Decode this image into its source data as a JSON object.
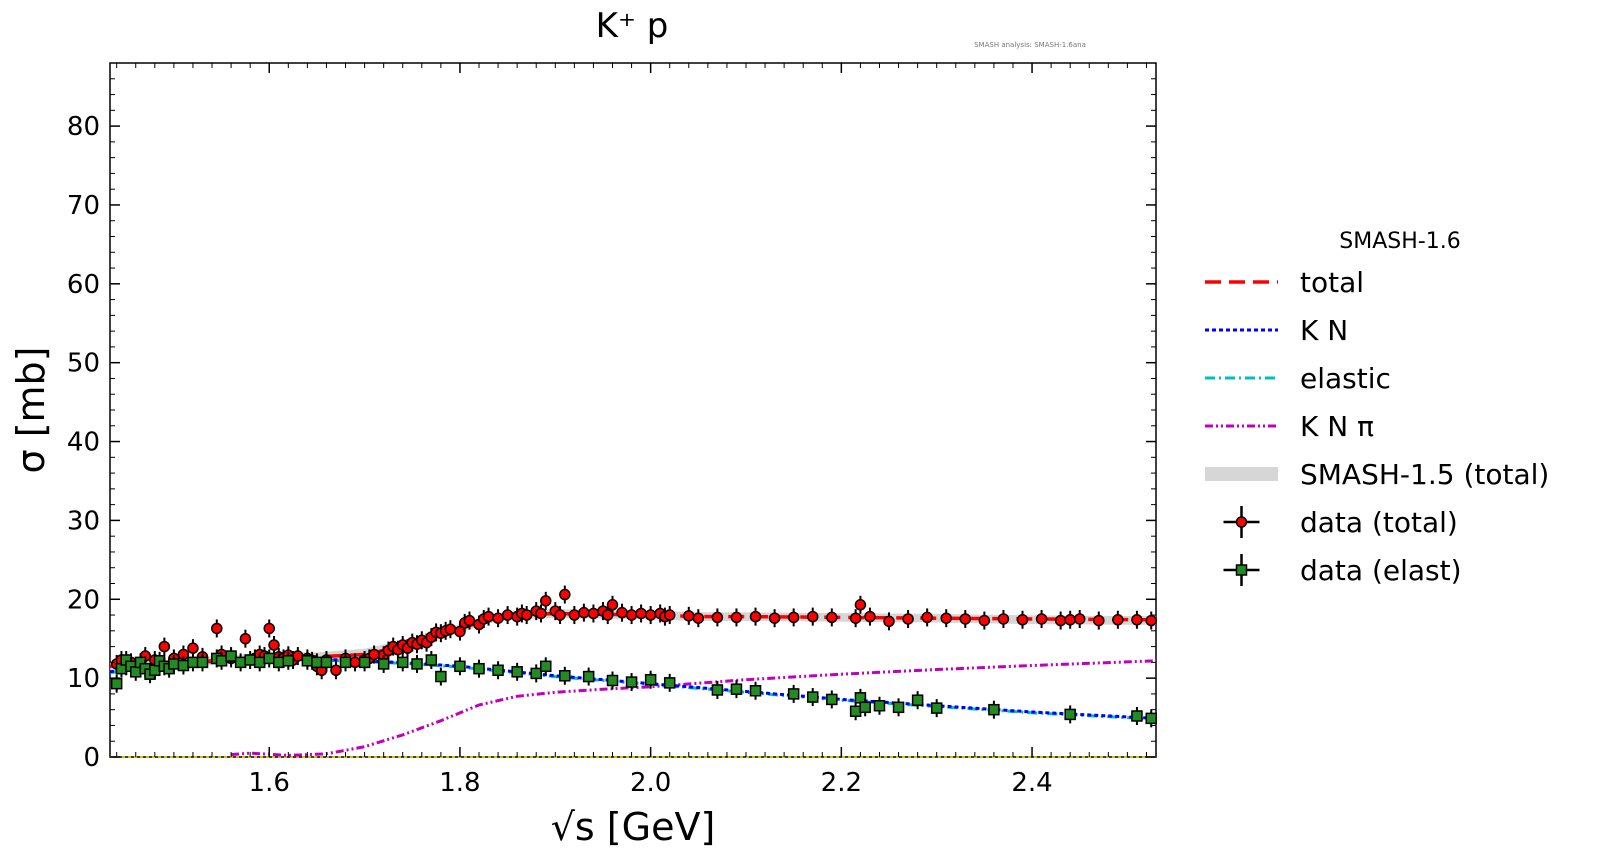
{
  "header": {
    "title": "K⁺ p",
    "watermark": "SMASH analysis: SMASH-1.6ana"
  },
  "chart_data": {
    "type": "line",
    "title": "K⁺ p",
    "xlabel": "√s [GeV]",
    "ylabel": "σ [mb]",
    "xlim": [
      1.433,
      2.53
    ],
    "ylim": [
      0,
      88
    ],
    "xticks": [
      1.6,
      1.8,
      2.0,
      2.2,
      2.4
    ],
    "xtick_labels": [
      "1.6",
      "1.8",
      "2.0",
      "2.2",
      "2.4"
    ],
    "yticks": [
      0,
      10,
      20,
      30,
      40,
      50,
      60,
      70,
      80
    ],
    "ytick_labels": [
      "0",
      "10",
      "20",
      "30",
      "40",
      "50",
      "60",
      "70",
      "80"
    ],
    "grid": false,
    "legend": {
      "title": "SMASH-1.6",
      "placement": "outside-right",
      "entries": [
        {
          "label": "total",
          "style": "dashed",
          "color": "#ff0000"
        },
        {
          "label": "K N",
          "style": "dotted",
          "color": "#0000ff"
        },
        {
          "label": "elastic",
          "style": "dashdot",
          "color": "#00bfbf"
        },
        {
          "label": "K N π",
          "style": "dashdotdot",
          "color": "#bf00bf"
        },
        {
          "label": "SMASH-1.5 (total)",
          "style": "band",
          "color": "#cccccc"
        },
        {
          "label": "data (total)",
          "style": "marker-circle",
          "color": "#ff0000"
        },
        {
          "label": "data (elast)",
          "style": "marker-square",
          "color": "#228B22"
        }
      ]
    },
    "series": [
      {
        "name": "SMASH-1.5 (total)",
        "kind": "band",
        "color": "#cccccc",
        "x": [
          1.433,
          1.5,
          1.55,
          1.6,
          1.65,
          1.7,
          1.75,
          1.8,
          1.83,
          1.86,
          1.9,
          1.95,
          2.0,
          2.05,
          2.1,
          2.2,
          2.3,
          2.4,
          2.53
        ],
        "y": [
          11.5,
          11.8,
          12.3,
          12.7,
          12.7,
          13.2,
          14.5,
          16.3,
          17.5,
          18.0,
          18.2,
          18.1,
          18.0,
          17.8,
          17.8,
          17.7,
          17.6,
          17.4,
          17.3
        ]
      },
      {
        "name": "total",
        "kind": "line",
        "style": "dashed",
        "color": "#ff0000",
        "x": [
          1.433,
          1.5,
          1.55,
          1.6,
          1.65,
          1.7,
          1.75,
          1.8,
          1.83,
          1.86,
          1.9,
          1.95,
          2.0,
          2.05,
          2.1,
          2.2,
          2.3,
          2.4,
          2.53
        ],
        "y": [
          11.5,
          11.8,
          12.3,
          12.7,
          12.7,
          13.0,
          14.3,
          16.3,
          17.4,
          18.0,
          18.2,
          18.1,
          18.0,
          17.8,
          17.8,
          17.7,
          17.6,
          17.5,
          17.4
        ]
      },
      {
        "name": "K N",
        "kind": "line",
        "style": "dotted",
        "color": "#0000ff",
        "x": [
          1.433,
          1.5,
          1.55,
          1.6,
          1.65,
          1.7,
          1.75,
          1.8,
          1.85,
          1.9,
          1.95,
          2.0,
          2.1,
          2.2,
          2.3,
          2.4,
          2.53
        ],
        "y": [
          10.8,
          11.8,
          12.2,
          12.4,
          12.4,
          12.2,
          11.9,
          11.5,
          10.9,
          10.3,
          9.8,
          9.3,
          8.3,
          7.3,
          6.5,
          5.7,
          4.9
        ]
      },
      {
        "name": "elastic",
        "kind": "line",
        "style": "dashdot",
        "color": "#00bfbf",
        "x": [
          1.433,
          1.5,
          1.55,
          1.6,
          1.65,
          1.7,
          1.75,
          1.8,
          1.85,
          1.9,
          1.95,
          2.0,
          2.1,
          2.2,
          2.3,
          2.4,
          2.53
        ],
        "y": [
          10.7,
          11.7,
          12.1,
          12.3,
          12.3,
          12.1,
          11.8,
          11.4,
          10.8,
          10.2,
          9.7,
          9.2,
          8.2,
          7.2,
          6.4,
          5.6,
          4.8
        ]
      },
      {
        "name": "K N π",
        "kind": "line",
        "style": "dashdotdot",
        "color": "#bf00bf",
        "x": [
          1.56,
          1.58,
          1.62,
          1.66,
          1.7,
          1.74,
          1.78,
          1.82,
          1.86,
          1.9,
          1.95,
          2.0,
          2.1,
          2.2,
          2.3,
          2.4,
          2.53
        ],
        "y": [
          0.3,
          0.5,
          0.2,
          0.4,
          1.3,
          2.8,
          4.6,
          6.6,
          7.7,
          8.2,
          8.6,
          8.9,
          9.8,
          10.5,
          11.1,
          11.6,
          12.2
        ]
      },
      {
        "name": "data (total)",
        "kind": "points",
        "marker": "circle",
        "color": "#ff0000",
        "x": [
          1.44,
          1.445,
          1.45,
          1.455,
          1.465,
          1.47,
          1.48,
          1.49,
          1.5,
          1.51,
          1.52,
          1.53,
          1.545,
          1.55,
          1.56,
          1.575,
          1.585,
          1.59,
          1.595,
          1.6,
          1.605,
          1.61,
          1.615,
          1.62,
          1.625,
          1.63,
          1.64,
          1.645,
          1.65,
          1.655,
          1.66,
          1.67,
          1.68,
          1.69,
          1.7,
          1.705,
          1.71,
          1.72,
          1.725,
          1.73,
          1.735,
          1.74,
          1.745,
          1.75,
          1.755,
          1.76,
          1.765,
          1.77,
          1.775,
          1.78,
          1.785,
          1.79,
          1.8,
          1.805,
          1.81,
          1.82,
          1.825,
          1.83,
          1.84,
          1.85,
          1.86,
          1.865,
          1.87,
          1.88,
          1.885,
          1.89,
          1.9,
          1.905,
          1.91,
          1.92,
          1.93,
          1.94,
          1.95,
          1.955,
          1.96,
          1.97,
          1.98,
          1.99,
          2.0,
          2.01,
          2.015,
          2.02,
          2.04,
          2.05,
          2.07,
          2.09,
          2.11,
          2.13,
          2.15,
          2.17,
          2.19,
          2.215,
          2.22,
          2.23,
          2.25,
          2.27,
          2.29,
          2.31,
          2.33,
          2.35,
          2.37,
          2.39,
          2.41,
          2.43,
          2.44,
          2.45,
          2.47,
          2.49,
          2.51,
          2.525
        ],
        "y": [
          11.8,
          12.3,
          11.5,
          12.0,
          11.7,
          12.8,
          12.3,
          14.0,
          12.5,
          13.0,
          13.8,
          12.7,
          16.3,
          13.0,
          12.5,
          15.0,
          12.5,
          13.0,
          12.8,
          16.3,
          14.2,
          12.7,
          12.5,
          12.9,
          12.3,
          12.8,
          12.5,
          12.2,
          11.5,
          11.0,
          12.3,
          11.0,
          12.5,
          12.0,
          12.3,
          12.5,
          13.0,
          12.9,
          13.5,
          14.0,
          13.6,
          14.2,
          13.8,
          14.5,
          14.3,
          14.8,
          14.5,
          15.2,
          15.8,
          15.7,
          16.0,
          16.2,
          15.9,
          17.0,
          17.3,
          16.8,
          17.5,
          17.8,
          17.6,
          18.0,
          17.8,
          18.2,
          18.0,
          18.5,
          18.2,
          19.8,
          18.5,
          18.0,
          20.6,
          18.0,
          18.3,
          18.2,
          18.5,
          18.0,
          19.3,
          18.3,
          18.0,
          18.2,
          18.0,
          18.2,
          17.8,
          18.0,
          17.9,
          17.6,
          17.7,
          17.7,
          17.8,
          17.6,
          17.7,
          17.8,
          17.7,
          17.6,
          19.3,
          17.8,
          17.2,
          17.5,
          17.7,
          17.6,
          17.5,
          17.3,
          17.5,
          17.4,
          17.5,
          17.3,
          17.4,
          17.5,
          17.3,
          17.4,
          17.4,
          17.3
        ]
      },
      {
        "name": "data (elast)",
        "kind": "points",
        "marker": "square",
        "color": "#228B22",
        "x": [
          1.44,
          1.445,
          1.45,
          1.455,
          1.46,
          1.465,
          1.47,
          1.475,
          1.48,
          1.485,
          1.49,
          1.495,
          1.5,
          1.51,
          1.52,
          1.53,
          1.545,
          1.55,
          1.56,
          1.57,
          1.58,
          1.59,
          1.6,
          1.61,
          1.62,
          1.64,
          1.65,
          1.66,
          1.68,
          1.7,
          1.72,
          1.74,
          1.755,
          1.77,
          1.78,
          1.8,
          1.82,
          1.84,
          1.86,
          1.88,
          1.89,
          1.91,
          1.935,
          1.96,
          1.98,
          2.0,
          2.02,
          2.07,
          2.09,
          2.11,
          2.15,
          2.17,
          2.19,
          2.215,
          2.22,
          2.225,
          2.24,
          2.26,
          2.28,
          2.3,
          2.36,
          2.44,
          2.51,
          2.525
        ],
        "y": [
          9.3,
          11.2,
          12.3,
          11.5,
          10.8,
          12.0,
          11.2,
          10.5,
          11.0,
          12.2,
          11.5,
          11.2,
          11.8,
          11.6,
          12.0,
          12.0,
          12.5,
          12.2,
          12.8,
          12.0,
          12.3,
          12.0,
          12.5,
          12.0,
          12.2,
          12.2,
          12.0,
          12.0,
          12.0,
          12.0,
          11.8,
          12.0,
          11.8,
          12.3,
          10.2,
          11.5,
          11.2,
          11.0,
          10.8,
          10.6,
          11.5,
          10.3,
          10.2,
          9.7,
          9.5,
          9.8,
          9.4,
          8.5,
          8.6,
          8.4,
          8.0,
          7.6,
          7.3,
          5.8,
          7.5,
          6.3,
          6.5,
          6.3,
          7.2,
          6.2,
          6.0,
          5.4,
          5.2,
          4.9
        ]
      }
    ]
  }
}
